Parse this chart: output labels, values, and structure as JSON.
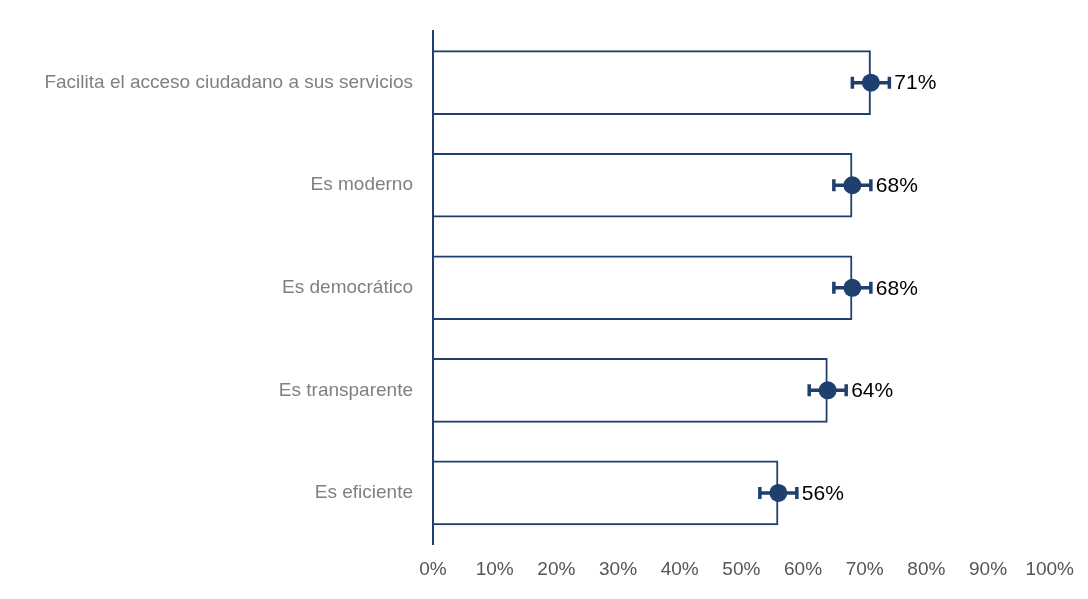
{
  "chart_data": {
    "type": "bar",
    "orientation": "horizontal",
    "categories": [
      "Facilita el acceso ciudadano a sus servicios",
      "Es moderno",
      "Es democrático",
      "Es transparente",
      "Es eficiente"
    ],
    "series": [
      {
        "type": "bar",
        "color": "#1f3f6e",
        "values": [
          71,
          68,
          68,
          64,
          56
        ]
      },
      {
        "type": "scatter",
        "color": "#1f3f6e",
        "x": [
          "Facilita el acceso ciudadano a sus servicios",
          "Es moderno",
          "Es democrático",
          "Es transparente",
          "Es eficiente"
        ],
        "values": [
          71,
          68,
          68,
          64,
          56
        ],
        "errors": [
          3,
          3,
          3,
          3,
          3
        ],
        "value_labels": [
          "71%",
          "68%",
          "68%",
          "64%",
          "56%"
        ]
      }
    ],
    "marker": "circle",
    "grid": false,
    "legend": false,
    "xlim": [
      0,
      100
    ],
    "xticks": [
      {
        "value": 0,
        "label": "0%"
      },
      {
        "value": 10,
        "label": "10%"
      },
      {
        "value": 20,
        "label": "20%"
      },
      {
        "value": 30,
        "label": "30%"
      },
      {
        "value": 40,
        "label": "40%"
      },
      {
        "value": 50,
        "label": "50%"
      },
      {
        "value": 60,
        "label": "60%"
      },
      {
        "value": 70,
        "label": "70%"
      },
      {
        "value": 80,
        "label": "80%"
      },
      {
        "value": 90,
        "label": "90%"
      },
      {
        "value": 100,
        "label": "100%"
      }
    ]
  }
}
